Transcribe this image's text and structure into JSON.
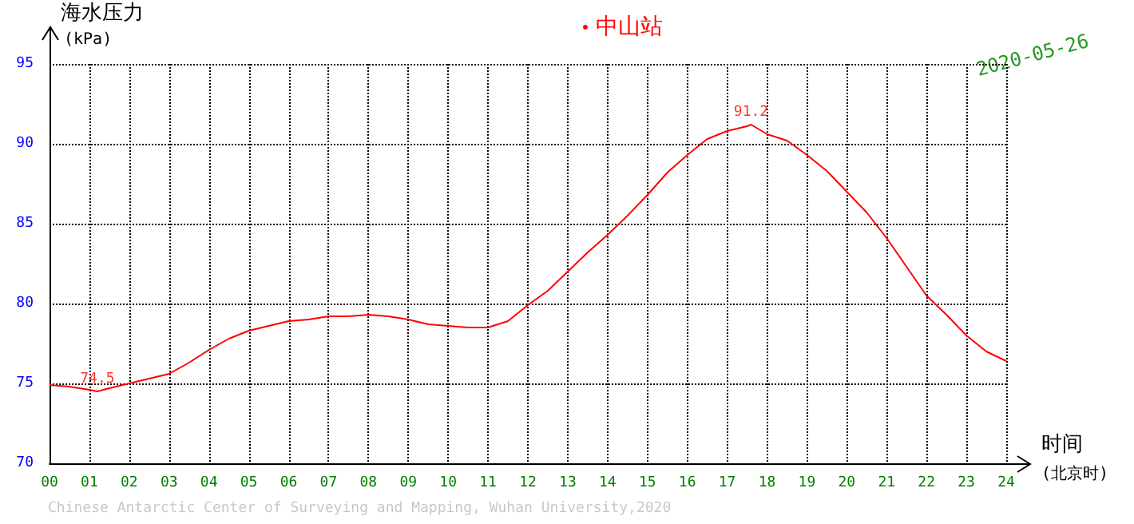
{
  "chart_data": {
    "type": "line",
    "ylabel": "海水压力",
    "xlabel": "时间",
    "annotations": [
      "(kPa)",
      "(北京时)",
      "2020-05-26",
      "Chinese Antarctic Center of Surveying and Mapping, Wuhan University,2020",
      {
        "text": "74.5",
        "x": 1.2,
        "y": 74.5
      },
      {
        "text": "91.2",
        "x": 17.6,
        "y": 91.2
      }
    ],
    "x": [
      0,
      0.5,
      1,
      1.2,
      1.5,
      2,
      2.5,
      3,
      3.5,
      4,
      4.5,
      5,
      5.5,
      6,
      6.5,
      7,
      7.5,
      8,
      8.5,
      9,
      9.5,
      10,
      10.5,
      11,
      11.5,
      12,
      12.5,
      13,
      13.5,
      14,
      14.5,
      15,
      15.5,
      16,
      16.5,
      17,
      17.5,
      17.6,
      18,
      18.5,
      19,
      19.5,
      20,
      20.5,
      21,
      21.5,
      22,
      22.5,
      23,
      23.5,
      24
    ],
    "series": [
      {
        "name": "中山站",
        "color": "#ff0000",
        "values": [
          74.9,
          74.8,
          74.6,
          74.5,
          74.7,
          75.0,
          75.3,
          75.6,
          76.3,
          77.1,
          77.8,
          78.3,
          78.6,
          78.9,
          79.0,
          79.2,
          79.2,
          79.3,
          79.2,
          79.0,
          78.7,
          78.6,
          78.5,
          78.5,
          78.9,
          79.9,
          80.8,
          82.0,
          83.2,
          84.3,
          85.5,
          86.8,
          88.2,
          89.3,
          90.3,
          90.8,
          91.1,
          91.2,
          90.6,
          90.2,
          89.3,
          88.3,
          87.0,
          85.7,
          84.1,
          82.3,
          80.5,
          79.3,
          78.0,
          77.0,
          76.4
        ]
      }
    ],
    "xlim": [
      0,
      24
    ],
    "xticks": [
      {
        "value": 0,
        "label": "00"
      },
      {
        "value": 1,
        "label": "01"
      },
      {
        "value": 2,
        "label": "02"
      },
      {
        "value": 3,
        "label": "03"
      },
      {
        "value": 4,
        "label": "04"
      },
      {
        "value": 5,
        "label": "05"
      },
      {
        "value": 6,
        "label": "06"
      },
      {
        "value": 7,
        "label": "07"
      },
      {
        "value": 8,
        "label": "08"
      },
      {
        "value": 9,
        "label": "09"
      },
      10,
      11,
      12,
      13,
      14,
      15,
      16,
      17,
      18,
      19,
      20,
      21,
      22,
      23,
      24
    ],
    "ylim": [
      70,
      95
    ],
    "yticks": [
      70,
      75,
      80,
      85,
      90,
      95
    ],
    "grid": true,
    "legend": "top",
    "marker": "none",
    "line_style": "solid"
  }
}
